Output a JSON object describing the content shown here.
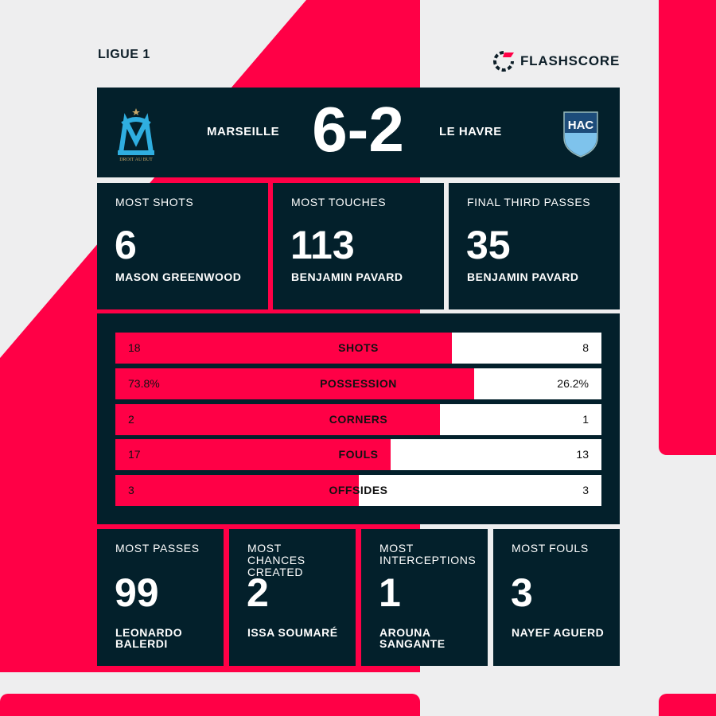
{
  "league": "LIGUE 1",
  "brand": "FLASHSCORE",
  "colors": {
    "accent": "#ff0046",
    "panel": "#03202b",
    "background": "#eeeeef"
  },
  "match": {
    "home": "MARSEILLE",
    "away": "LE HAVRE",
    "score": "6-2",
    "home_logo_text": "DROIT AU BUT",
    "away_logo_text": "HAC"
  },
  "top_leaders": [
    {
      "label": "MOST SHOTS",
      "value": "6",
      "player": "MASON GREENWOOD"
    },
    {
      "label": "MOST TOUCHES",
      "value": "113",
      "player": "BENJAMIN PAVARD"
    },
    {
      "label": "FINAL THIRD PASSES",
      "value": "35",
      "player": "BENJAMIN PAVARD"
    }
  ],
  "stats": [
    {
      "label": "SHOTS",
      "home": "18",
      "away": "8",
      "home_share": 0.692
    },
    {
      "label": "POSSESSION",
      "home": "73.8%",
      "away": "26.2%",
      "home_share": 0.738
    },
    {
      "label": "CORNERS",
      "home": "2",
      "away": "1",
      "home_share": 0.667
    },
    {
      "label": "FOULS",
      "home": "17",
      "away": "13",
      "home_share": 0.567
    },
    {
      "label": "OFFSIDES",
      "home": "3",
      "away": "3",
      "home_share": 0.5
    }
  ],
  "bottom_leaders": [
    {
      "label": "MOST PASSES",
      "value": "99",
      "player": "LEONARDO BALERDI"
    },
    {
      "label": "MOST CHANCES CREATED",
      "value": "2",
      "player": "ISSA SOUMARÉ"
    },
    {
      "label": "MOST INTERCEPTIONS",
      "value": "1",
      "player": "AROUNA SANGANTE"
    },
    {
      "label": "MOST FOULS",
      "value": "3",
      "player": "NAYEF AGUERD"
    }
  ]
}
